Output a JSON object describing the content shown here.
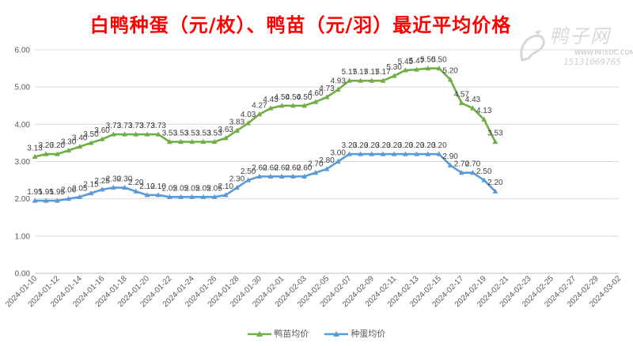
{
  "chart_data": {
    "type": "line",
    "title": "白鸭种蛋（元/枚）、鸭苗（元/羽）最近平均价格",
    "ylim": [
      0,
      6
    ],
    "yticks": [
      "0.00",
      "1.00",
      "2.00",
      "3.00",
      "4.00",
      "5.00",
      "6.00"
    ],
    "xtick_labels": [
      "2024-01-10",
      "2024-01-12",
      "2024-01-14",
      "2024-01-16",
      "2024-01-18",
      "2024-01-20",
      "2024-01-22",
      "2024-01-24",
      "2024-01-26",
      "2024-01-28",
      "2024-01-30",
      "2024-02-01",
      "2024-02-03",
      "2024-02-05",
      "2024-02-07",
      "2024-02-09",
      "2024-02-11",
      "2024-02-13",
      "2024-02-15",
      "2024-02-17",
      "2024-02-19",
      "2024-02-21",
      "2024-02-23",
      "2024-02-25",
      "2024-02-27",
      "2024-02-29",
      "2024-03-02"
    ],
    "grid": true,
    "legend_position": "bottom",
    "series": [
      {
        "name": "鸭苗均价",
        "color": "#70ad47",
        "marker": "triangle",
        "x": [
          "2024-01-10",
          "2024-01-11",
          "2024-01-12",
          "2024-01-13",
          "2024-01-14",
          "2024-01-15",
          "2024-01-16",
          "2024-01-17",
          "2024-01-18",
          "2024-01-19",
          "2024-01-20",
          "2024-01-21",
          "2024-01-22",
          "2024-01-23",
          "2024-01-24",
          "2024-01-25",
          "2024-01-26",
          "2024-01-27",
          "2024-01-28",
          "2024-01-29",
          "2024-01-30",
          "2024-01-31",
          "2024-02-01",
          "2024-02-02",
          "2024-02-03",
          "2024-02-04",
          "2024-02-05",
          "2024-02-06",
          "2024-02-07",
          "2024-02-08",
          "2024-02-09",
          "2024-02-10",
          "2024-02-11",
          "2024-02-12",
          "2024-02-13",
          "2024-02-14",
          "2024-02-15",
          "2024-02-16",
          "2024-02-17",
          "2024-02-18",
          "2024-02-19",
          "2024-02-20"
        ],
        "values": [
          3.13,
          3.2,
          3.2,
          3.3,
          3.4,
          3.5,
          3.6,
          3.73,
          3.73,
          3.73,
          3.73,
          3.73,
          3.53,
          3.53,
          3.53,
          3.53,
          3.53,
          3.63,
          3.83,
          4.03,
          4.27,
          4.43,
          4.5,
          4.5,
          4.5,
          4.6,
          4.73,
          4.93,
          5.17,
          5.17,
          5.17,
          5.17,
          5.3,
          5.45,
          5.47,
          5.5,
          5.5,
          5.2,
          4.57,
          4.43,
          4.13,
          3.53
        ],
        "labels": [
          "3.13",
          "3.20",
          "3.20",
          "3.30",
          "3.40",
          "3.50",
          "3.60",
          "3.73",
          "3.73",
          "3.73",
          "3.73",
          "3.73",
          "3.53",
          "3.53",
          "3.53",
          "3.53",
          "3.53",
          "3.63",
          "3.83",
          "4.03",
          "4.27",
          "4.43",
          "4.50",
          "4.50",
          "4.50",
          "4.60",
          "4.73",
          "4.93",
          "5.17",
          "5.17",
          "5.17",
          "5.17",
          "5.30",
          "5.45",
          "5.47",
          "5.50",
          "5.50",
          "5.20",
          "4.57",
          "4.43",
          "4.13",
          "3.53"
        ]
      },
      {
        "name": "种蛋均价",
        "color": "#5b9bd5",
        "marker": "triangle",
        "x": [
          "2024-01-10",
          "2024-01-11",
          "2024-01-12",
          "2024-01-13",
          "2024-01-14",
          "2024-01-15",
          "2024-01-16",
          "2024-01-17",
          "2024-01-18",
          "2024-01-19",
          "2024-01-20",
          "2024-01-21",
          "2024-01-22",
          "2024-01-23",
          "2024-01-24",
          "2024-01-25",
          "2024-01-26",
          "2024-01-27",
          "2024-01-28",
          "2024-01-29",
          "2024-01-30",
          "2024-01-31",
          "2024-02-01",
          "2024-02-02",
          "2024-02-03",
          "2024-02-04",
          "2024-02-05",
          "2024-02-06",
          "2024-02-07",
          "2024-02-08",
          "2024-02-09",
          "2024-02-10",
          "2024-02-11",
          "2024-02-12",
          "2024-02-13",
          "2024-02-14",
          "2024-02-15",
          "2024-02-16",
          "2024-02-17",
          "2024-02-18",
          "2024-02-19",
          "2024-02-20"
        ],
        "values": [
          1.95,
          1.95,
          1.95,
          2.0,
          2.05,
          2.15,
          2.25,
          2.3,
          2.3,
          2.2,
          2.1,
          2.1,
          2.05,
          2.05,
          2.05,
          2.05,
          2.05,
          2.1,
          2.3,
          2.5,
          2.6,
          2.6,
          2.6,
          2.6,
          2.6,
          2.7,
          2.8,
          3.0,
          3.2,
          3.2,
          3.2,
          3.2,
          3.2,
          3.2,
          3.2,
          3.2,
          3.2,
          2.9,
          2.7,
          2.7,
          2.5,
          2.2
        ],
        "labels": [
          "1.95",
          "1.95",
          "1.95",
          "2.00",
          "2.05",
          "2.15",
          "2.25",
          "2.30",
          "2.30",
          "2.20",
          "2.10",
          "2.10",
          "2.05",
          "2.05",
          "2.05",
          "2.05",
          "2.05",
          "2.10",
          "2.30",
          "2.50",
          "2.60",
          "2.60",
          "2.60",
          "2.60",
          "2.60",
          "2.70",
          "2.80",
          "3.00",
          "3.20",
          "3.20",
          "3.20",
          "3.20",
          "3.20",
          "3.20",
          "3.20",
          "3.20",
          "3.20",
          "2.90",
          "2.70",
          "2.70",
          "2.50",
          "2.20"
        ]
      }
    ]
  },
  "watermark": {
    "name": "鸭子网",
    "url": "WWW.INTEDC.COM",
    "phone": "15131069765"
  }
}
